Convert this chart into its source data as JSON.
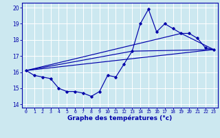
{
  "xlabel": "Graphe des températures (°c)",
  "background_color": "#cce8f0",
  "line_color": "#0000aa",
  "xlim": [
    -0.5,
    23.5
  ],
  "ylim": [
    13.8,
    20.3
  ],
  "xticks": [
    0,
    1,
    2,
    3,
    4,
    5,
    6,
    7,
    8,
    9,
    10,
    11,
    12,
    13,
    14,
    15,
    16,
    17,
    18,
    19,
    20,
    21,
    22,
    23
  ],
  "yticks": [
    14,
    15,
    16,
    17,
    18,
    19,
    20
  ],
  "hours": [
    0,
    1,
    2,
    3,
    4,
    5,
    6,
    7,
    8,
    9,
    10,
    11,
    12,
    13,
    14,
    15,
    16,
    17,
    18,
    19,
    20,
    21,
    22,
    23
  ],
  "temps": [
    16.1,
    15.8,
    15.7,
    15.6,
    15.0,
    14.8,
    14.8,
    14.7,
    14.5,
    14.8,
    15.8,
    15.7,
    16.5,
    17.3,
    19.0,
    19.9,
    18.5,
    19.0,
    18.7,
    18.4,
    18.4,
    18.1,
    17.5,
    17.4
  ],
  "trend1_x": [
    0,
    23
  ],
  "trend1_y": [
    16.1,
    17.4
  ],
  "trend2_x": [
    0,
    13,
    23
  ],
  "trend2_y": [
    16.1,
    17.3,
    17.4
  ],
  "trend3_x": [
    0,
    19,
    23
  ],
  "trend3_y": [
    16.1,
    18.4,
    17.4
  ],
  "xlabel_fontsize": 6.5,
  "xtick_fontsize": 4.8,
  "ytick_fontsize": 5.5
}
